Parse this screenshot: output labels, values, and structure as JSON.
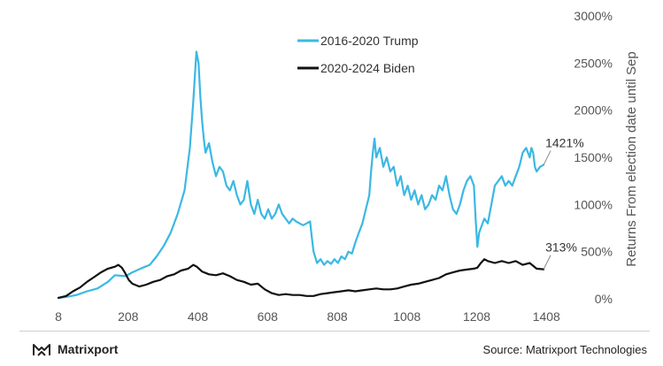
{
  "chart_data": {
    "type": "line",
    "title": "",
    "xlabel": "",
    "ylabel": "Returns From election date until Sep",
    "xlim": [
      8,
      1420
    ],
    "ylim": [
      0,
      3000
    ],
    "x_ticks": [
      "8",
      "208",
      "408",
      "608",
      "808",
      "1008",
      "1208",
      "1408"
    ],
    "y_ticks": [
      "0%",
      "500%",
      "1000%",
      "1500%",
      "2000%",
      "2500%",
      "3000%"
    ],
    "y_axis_side": "right",
    "grid": false,
    "legend_position": "top-center",
    "series": [
      {
        "name": "2016-2020 Trump",
        "color": "#3bb8e3",
        "points": [
          [
            8,
            10
          ],
          [
            30,
            20
          ],
          [
            60,
            40
          ],
          [
            90,
            80
          ],
          [
            120,
            110
          ],
          [
            150,
            180
          ],
          [
            170,
            250
          ],
          [
            200,
            240
          ],
          [
            220,
            280
          ],
          [
            250,
            330
          ],
          [
            270,
            360
          ],
          [
            290,
            450
          ],
          [
            310,
            560
          ],
          [
            330,
            700
          ],
          [
            350,
            900
          ],
          [
            370,
            1150
          ],
          [
            385,
            1600
          ],
          [
            395,
            2100
          ],
          [
            400,
            2400
          ],
          [
            404,
            2620
          ],
          [
            410,
            2500
          ],
          [
            415,
            2150
          ],
          [
            420,
            1900
          ],
          [
            425,
            1700
          ],
          [
            430,
            1550
          ],
          [
            440,
            1650
          ],
          [
            450,
            1450
          ],
          [
            460,
            1300
          ],
          [
            470,
            1400
          ],
          [
            480,
            1350
          ],
          [
            490,
            1200
          ],
          [
            500,
            1150
          ],
          [
            510,
            1250
          ],
          [
            520,
            1100
          ],
          [
            530,
            1000
          ],
          [
            540,
            1050
          ],
          [
            550,
            1250
          ],
          [
            560,
            1000
          ],
          [
            570,
            900
          ],
          [
            580,
            1050
          ],
          [
            590,
            900
          ],
          [
            600,
            850
          ],
          [
            610,
            950
          ],
          [
            620,
            850
          ],
          [
            630,
            900
          ],
          [
            640,
            1000
          ],
          [
            650,
            900
          ],
          [
            660,
            850
          ],
          [
            670,
            800
          ],
          [
            680,
            850
          ],
          [
            690,
            820
          ],
          [
            700,
            800
          ],
          [
            710,
            780
          ],
          [
            720,
            800
          ],
          [
            730,
            820
          ],
          [
            735,
            650
          ],
          [
            740,
            500
          ],
          [
            750,
            380
          ],
          [
            760,
            420
          ],
          [
            770,
            360
          ],
          [
            780,
            400
          ],
          [
            790,
            370
          ],
          [
            800,
            420
          ],
          [
            810,
            380
          ],
          [
            820,
            450
          ],
          [
            830,
            420
          ],
          [
            840,
            500
          ],
          [
            850,
            480
          ],
          [
            860,
            600
          ],
          [
            870,
            700
          ],
          [
            880,
            800
          ],
          [
            890,
            950
          ],
          [
            900,
            1100
          ],
          [
            905,
            1350
          ],
          [
            910,
            1550
          ],
          [
            915,
            1700
          ],
          [
            920,
            1500
          ],
          [
            930,
            1600
          ],
          [
            940,
            1400
          ],
          [
            950,
            1500
          ],
          [
            960,
            1350
          ],
          [
            970,
            1400
          ],
          [
            980,
            1200
          ],
          [
            990,
            1300
          ],
          [
            1000,
            1100
          ],
          [
            1010,
            1200
          ],
          [
            1020,
            1050
          ],
          [
            1030,
            1150
          ],
          [
            1040,
            1000
          ],
          [
            1050,
            1100
          ],
          [
            1060,
            950
          ],
          [
            1070,
            1000
          ],
          [
            1080,
            1100
          ],
          [
            1090,
            1050
          ],
          [
            1100,
            1200
          ],
          [
            1110,
            1150
          ],
          [
            1120,
            1300
          ],
          [
            1130,
            1100
          ],
          [
            1140,
            950
          ],
          [
            1150,
            900
          ],
          [
            1160,
            1000
          ],
          [
            1170,
            1150
          ],
          [
            1180,
            1250
          ],
          [
            1190,
            1300
          ],
          [
            1200,
            1200
          ],
          [
            1205,
            850
          ],
          [
            1210,
            550
          ],
          [
            1215,
            700
          ],
          [
            1220,
            750
          ],
          [
            1230,
            850
          ],
          [
            1240,
            800
          ],
          [
            1250,
            1000
          ],
          [
            1260,
            1200
          ],
          [
            1270,
            1250
          ],
          [
            1280,
            1300
          ],
          [
            1290,
            1200
          ],
          [
            1300,
            1250
          ],
          [
            1310,
            1200
          ],
          [
            1320,
            1300
          ],
          [
            1330,
            1400
          ],
          [
            1340,
            1550
          ],
          [
            1350,
            1600
          ],
          [
            1360,
            1500
          ],
          [
            1365,
            1600
          ],
          [
            1370,
            1550
          ],
          [
            1375,
            1400
          ],
          [
            1380,
            1350
          ],
          [
            1390,
            1400
          ],
          [
            1400,
            1421
          ]
        ]
      },
      {
        "name": "2020-2024 Biden",
        "color": "#111111",
        "points": [
          [
            8,
            10
          ],
          [
            30,
            30
          ],
          [
            50,
            80
          ],
          [
            70,
            120
          ],
          [
            90,
            180
          ],
          [
            110,
            230
          ],
          [
            130,
            280
          ],
          [
            150,
            320
          ],
          [
            170,
            340
          ],
          [
            180,
            360
          ],
          [
            190,
            330
          ],
          [
            200,
            270
          ],
          [
            210,
            200
          ],
          [
            220,
            160
          ],
          [
            240,
            130
          ],
          [
            260,
            150
          ],
          [
            280,
            180
          ],
          [
            300,
            200
          ],
          [
            320,
            240
          ],
          [
            340,
            260
          ],
          [
            360,
            300
          ],
          [
            380,
            320
          ],
          [
            395,
            360
          ],
          [
            405,
            340
          ],
          [
            420,
            290
          ],
          [
            440,
            260
          ],
          [
            460,
            250
          ],
          [
            480,
            270
          ],
          [
            500,
            240
          ],
          [
            520,
            200
          ],
          [
            540,
            180
          ],
          [
            560,
            150
          ],
          [
            580,
            160
          ],
          [
            600,
            100
          ],
          [
            620,
            60
          ],
          [
            640,
            40
          ],
          [
            660,
            50
          ],
          [
            680,
            40
          ],
          [
            700,
            40
          ],
          [
            720,
            30
          ],
          [
            740,
            30
          ],
          [
            760,
            50
          ],
          [
            780,
            60
          ],
          [
            800,
            70
          ],
          [
            820,
            80
          ],
          [
            840,
            90
          ],
          [
            860,
            80
          ],
          [
            880,
            90
          ],
          [
            900,
            100
          ],
          [
            920,
            110
          ],
          [
            940,
            100
          ],
          [
            960,
            100
          ],
          [
            980,
            110
          ],
          [
            1000,
            130
          ],
          [
            1020,
            150
          ],
          [
            1040,
            160
          ],
          [
            1060,
            180
          ],
          [
            1080,
            200
          ],
          [
            1100,
            220
          ],
          [
            1120,
            260
          ],
          [
            1140,
            280
          ],
          [
            1160,
            300
          ],
          [
            1180,
            310
          ],
          [
            1200,
            320
          ],
          [
            1210,
            330
          ],
          [
            1220,
            380
          ],
          [
            1230,
            420
          ],
          [
            1240,
            400
          ],
          [
            1260,
            380
          ],
          [
            1280,
            400
          ],
          [
            1300,
            380
          ],
          [
            1320,
            400
          ],
          [
            1340,
            360
          ],
          [
            1360,
            380
          ],
          [
            1380,
            320
          ],
          [
            1400,
            313
          ]
        ]
      }
    ],
    "annotations": [
      {
        "text": "1421%",
        "series": "2016-2020 Trump",
        "x": 1400,
        "y": 1421
      },
      {
        "text": "313%",
        "series": "2020-2024 Biden",
        "x": 1400,
        "y": 313
      }
    ]
  },
  "footer": {
    "brand": "Matrixport",
    "brand_icon": "matrixport-logo-icon",
    "source": "Source: Matrixport Technologies"
  }
}
